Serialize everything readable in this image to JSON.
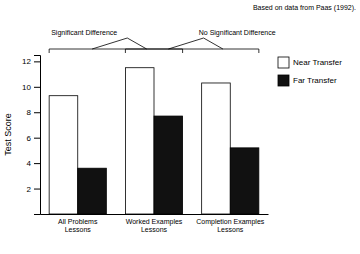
{
  "chart_data": {
    "type": "bar",
    "categories": [
      "All Problems\nLessons",
      "Worked Examples\nLessons",
      "Completion Examples\nLessons"
    ],
    "series": [
      {
        "name": "Near Transfer",
        "color": "#ffffff",
        "values": [
          9.3,
          11.5,
          10.3
        ]
      },
      {
        "name": "Far Transfer",
        "color": "#111111",
        "values": [
          3.6,
          7.7,
          5.2
        ]
      }
    ],
    "ylabel": "Test Score",
    "ylim": [
      0,
      12.5
    ],
    "yticks": [
      2,
      4,
      6,
      8,
      10,
      12
    ],
    "grid": false,
    "legend": "upper right",
    "annotations": [
      {
        "text": "Significant Difference",
        "categories": [
          "All Problems\nLessons",
          "Worked Examples\nLessons"
        ]
      },
      {
        "text": "No Significant Difference",
        "categories": [
          "Worked Examples\nLessons",
          "Completion Examples\nLessons"
        ]
      },
      {
        "text": "Based on data from Paas (1992)."
      }
    ]
  }
}
